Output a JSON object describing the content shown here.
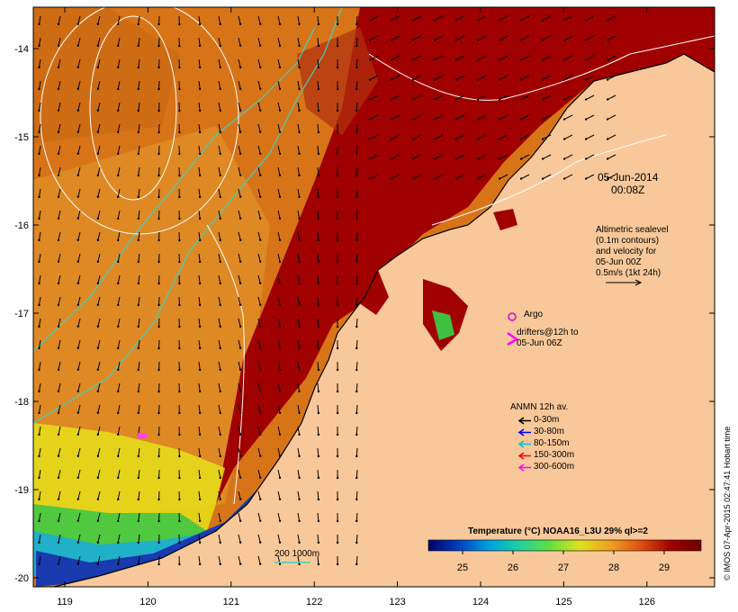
{
  "map": {
    "x_ticks": [
      "119",
      "120",
      "121",
      "122",
      "123",
      "124",
      "125",
      "126"
    ],
    "y_ticks": [
      "-14",
      "-15",
      "-16",
      "-17",
      "-18",
      "-19",
      "-20"
    ],
    "date_line1": "05-Jun-2014",
    "date_line2": "00:08Z",
    "altimetry_note": [
      "Altimetric sealevel",
      "(0.1m contours)",
      "and velocity for",
      "05-Jun 00Z",
      "0.5m/s (1kt 24h)"
    ],
    "argo_label": "Argo",
    "drifter_label": [
      "drifters@12h to",
      "05-Jun 06Z"
    ],
    "depth_label": "200 1000m",
    "credit": "© IMOS 07-Apr-2015 02:47:41 Hobart time",
    "colors": {
      "land": "#f8c89a",
      "hot": "#a00000",
      "warm": "#d86a10",
      "mid": "#e89a20",
      "cool_yellow": "#e6e01a",
      "green": "#40c040",
      "cyan": "#20c0c0",
      "blue": "#1a3ab0",
      "navy": "#000060",
      "contour": "#ffffff",
      "isobath": "#40d0c0",
      "argo": "#e000e0",
      "drifter": "#ff00ff"
    }
  },
  "legend": {
    "title": "ANMN 12h av.",
    "items": [
      {
        "label": "0-30m",
        "color": "#000000"
      },
      {
        "label": "30-80m",
        "color": "#0000ff"
      },
      {
        "label": "80-150m",
        "color": "#00c8c8"
      },
      {
        "label": "150-300m",
        "color": "#ff0000"
      },
      {
        "label": "300-600m",
        "color": "#ff00ff"
      }
    ]
  },
  "colorbar": {
    "title": "Temperature (°C) NOAA16_L3U 29% ql>=2",
    "ticks": [
      "25",
      "26",
      "27",
      "28",
      "29"
    ],
    "stops": [
      "#00006a",
      "#0040c0",
      "#00a0e0",
      "#20d0a0",
      "#60e040",
      "#e0e020",
      "#f0a020",
      "#e05010",
      "#a00000",
      "#700000"
    ]
  }
}
